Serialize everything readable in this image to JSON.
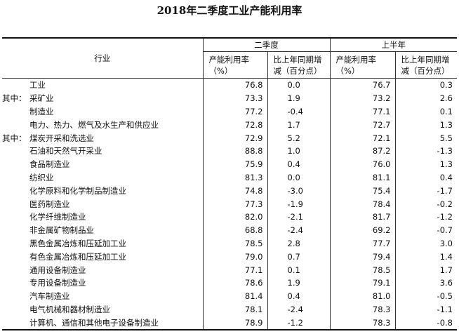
{
  "title": "2018年二季度工业产能利用率",
  "header": {
    "industry": "行业",
    "q2": "二季度",
    "h1": "上半年",
    "util": "产能利用率（%）",
    "yoy": "比上年同期增减（百分点）"
  },
  "rows": [
    {
      "prefix": "",
      "name": "工业",
      "q2_util": "76.8",
      "q2_yoy": "0.0",
      "h1_util": "76.7",
      "h1_yoy": "0.3"
    },
    {
      "prefix": "其中：",
      "name": "采矿业",
      "q2_util": "73.3",
      "q2_yoy": "1.9",
      "h1_util": "73.2",
      "h1_yoy": "2.6"
    },
    {
      "prefix": "",
      "name": "制造业",
      "q2_util": "77.2",
      "q2_yoy": "-0.4",
      "h1_util": "77.1",
      "h1_yoy": "0.1"
    },
    {
      "prefix": "",
      "name": "电力、热力、燃气及水生产和供应业",
      "q2_util": "72.8",
      "q2_yoy": "1.7",
      "h1_util": "72.7",
      "h1_yoy": "1.3"
    },
    {
      "prefix": "其中：",
      "name": "煤炭开采和洗选业",
      "q2_util": "72.9",
      "q2_yoy": "5.2",
      "h1_util": "72.1",
      "h1_yoy": "5.5"
    },
    {
      "prefix": "",
      "name": "石油和天然气开采业",
      "q2_util": "88.8",
      "q2_yoy": "1.0",
      "h1_util": "87.2",
      "h1_yoy": "-1.3"
    },
    {
      "prefix": "",
      "name": "食品制造业",
      "q2_util": "75.9",
      "q2_yoy": "0.4",
      "h1_util": "76.0",
      "h1_yoy": "1.3"
    },
    {
      "prefix": "",
      "name": "纺织业",
      "q2_util": "81.3",
      "q2_yoy": "0.0",
      "h1_util": "81.1",
      "h1_yoy": "0.4"
    },
    {
      "prefix": "",
      "name": "化学原料和化学制品制造业",
      "q2_util": "74.8",
      "q2_yoy": "-3.0",
      "h1_util": "75.4",
      "h1_yoy": "-1.7"
    },
    {
      "prefix": "",
      "name": "医药制造业",
      "q2_util": "77.3",
      "q2_yoy": "-1.9",
      "h1_util": "78.4",
      "h1_yoy": "-0.2"
    },
    {
      "prefix": "",
      "name": "化学纤维制造业",
      "q2_util": "82.0",
      "q2_yoy": "-2.1",
      "h1_util": "81.7",
      "h1_yoy": "-1.2"
    },
    {
      "prefix": "",
      "name": "非金属矿物制品业",
      "q2_util": "68.8",
      "q2_yoy": "-2.4",
      "h1_util": "69.2",
      "h1_yoy": "-0.7"
    },
    {
      "prefix": "",
      "name": "黑色金属冶炼和压延加工业",
      "q2_util": "78.5",
      "q2_yoy": "2.8",
      "h1_util": "77.7",
      "h1_yoy": "3.0"
    },
    {
      "prefix": "",
      "name": "有色金属冶炼和压延加工业",
      "q2_util": "79.0",
      "q2_yoy": "0.7",
      "h1_util": "79.4",
      "h1_yoy": "1.4"
    },
    {
      "prefix": "",
      "name": "通用设备制造业",
      "q2_util": "77.1",
      "q2_yoy": "0.1",
      "h1_util": "78.5",
      "h1_yoy": "1.7"
    },
    {
      "prefix": "",
      "name": "专用设备制造业",
      "q2_util": "78.6",
      "q2_yoy": "1.9",
      "h1_util": "79.1",
      "h1_yoy": "3.6"
    },
    {
      "prefix": "",
      "name": "汽车制造业",
      "q2_util": "81.4",
      "q2_yoy": "0.4",
      "h1_util": "81.0",
      "h1_yoy": "-0.5"
    },
    {
      "prefix": "",
      "name": "电气机械和器材制造业",
      "q2_util": "78.1",
      "q2_yoy": "-2.4",
      "h1_util": "78.3",
      "h1_yoy": "-1.1"
    },
    {
      "prefix": "",
      "name": "计算机、通信和其他电子设备制造业",
      "q2_util": "78.9",
      "q2_yoy": "-1.2",
      "h1_util": "78.3",
      "h1_yoy": "-0.8"
    }
  ]
}
